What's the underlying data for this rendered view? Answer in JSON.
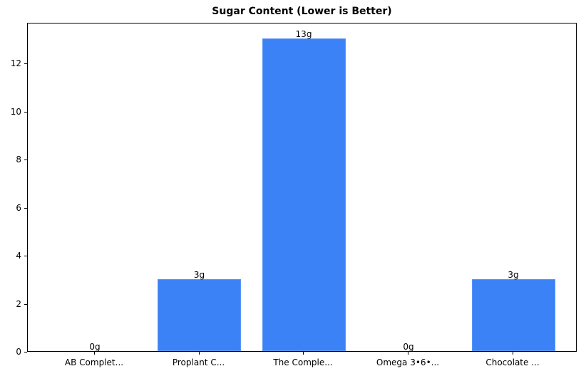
{
  "chart_data": {
    "type": "bar",
    "title": "Sugar Content (Lower is Better)",
    "xlabel": "",
    "ylabel": "",
    "categories": [
      "AB Complet...",
      "Proplant C...",
      "The Comple...",
      "Omega 3•6•...",
      "Chocolate ..."
    ],
    "values": [
      0,
      3,
      13,
      0,
      3
    ],
    "value_labels": [
      "0g",
      "3g",
      "13g",
      "0g",
      "3g"
    ],
    "ylim": [
      0,
      13.65
    ],
    "yticks": [
      0,
      2,
      4,
      6,
      8,
      10,
      12
    ],
    "grid": false,
    "legend": null,
    "bar_color": "#3b82f6"
  }
}
